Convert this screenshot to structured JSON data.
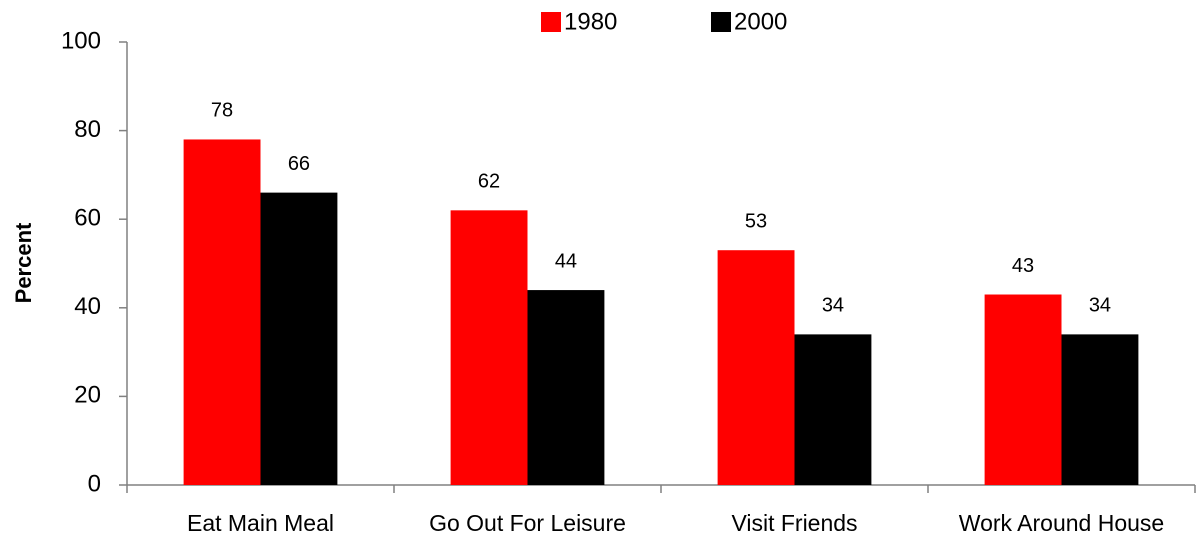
{
  "chart_data": {
    "type": "bar",
    "categories": [
      "Eat Main Meal",
      "Go Out For Leisure",
      "Visit Friends",
      "Work Around House"
    ],
    "series": [
      {
        "name": "1980",
        "color": "#ff0000",
        "values": [
          78,
          62,
          53,
          43
        ]
      },
      {
        "name": "2000",
        "color": "#000000",
        "values": [
          66,
          44,
          34,
          34
        ]
      }
    ],
    "y_label": "Percent",
    "ylim": [
      0,
      100
    ],
    "yticks": [
      0,
      20,
      40,
      60,
      80,
      100
    ],
    "grid": false,
    "legend": "top"
  }
}
